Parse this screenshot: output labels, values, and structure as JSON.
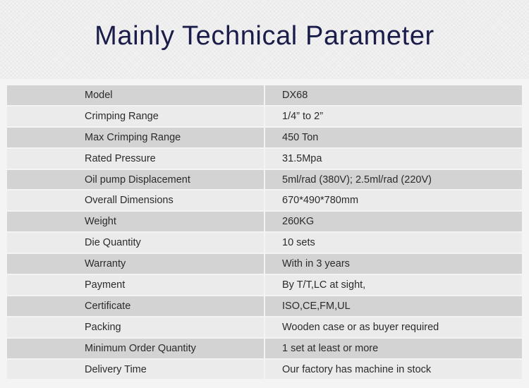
{
  "header": {
    "title": "Mainly Technical Parameter"
  },
  "specs": [
    {
      "label": "Model",
      "value": "DX68"
    },
    {
      "label": "Crimping Range",
      "value": "1/4” to 2”"
    },
    {
      "label": "Max Crimping Range",
      "value": "450 Ton"
    },
    {
      "label": "Rated Pressure",
      "value": "31.5Mpa"
    },
    {
      "label": "Oil pump Displacement",
      "value": "5ml/rad (380V); 2.5ml/rad (220V)"
    },
    {
      "label": "Overall Dimensions",
      "value": "670*490*780mm"
    },
    {
      "label": "Weight",
      "value": "260KG"
    },
    {
      "label": "Die Quantity",
      "value": "10 sets"
    },
    {
      "label": "Warranty",
      "value": "With in 3 years"
    },
    {
      "label": "Payment",
      "value": "By T/T,LC at sight,"
    },
    {
      "label": "Certificate",
      "value": "ISO,CE,FM,UL"
    },
    {
      "label": "Packing",
      "value": "Wooden case or as buyer required"
    },
    {
      "label": "Minimum Order Quantity",
      "value": "1 set at least or more"
    },
    {
      "label": "Delivery Time",
      "value": "Our factory has machine in stock"
    }
  ],
  "colors": {
    "title": "#1a1d4a",
    "row_dark": "#d3d3d3",
    "row_light": "#ebebeb",
    "text": "#2b2b2b"
  }
}
